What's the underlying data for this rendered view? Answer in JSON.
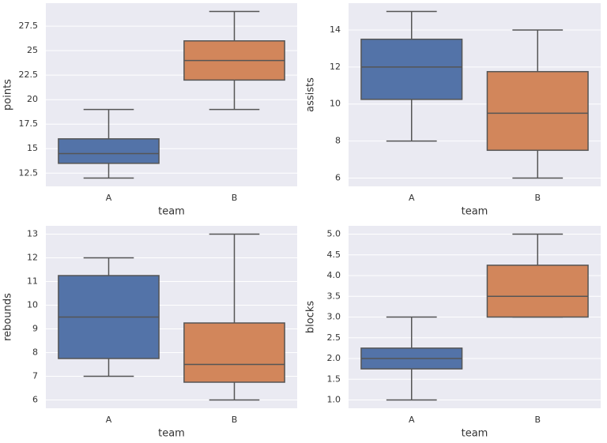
{
  "chart_data": [
    {
      "type": "box",
      "ylabel": "points",
      "xlabel": "team",
      "categories": [
        "A",
        "B"
      ],
      "boxes": [
        {
          "min": 12,
          "q1": 13.5,
          "median": 14.5,
          "q3": 16,
          "max": 19
        },
        {
          "min": 19,
          "q1": 22,
          "median": 24,
          "q3": 26,
          "max": 29
        }
      ],
      "colors": [
        "#4c72b0",
        "#dd8452"
      ],
      "ylim": [
        11.15,
        29.85
      ],
      "yticks": [
        12.5,
        15.0,
        17.5,
        20.0,
        22.5,
        25.0,
        27.5
      ],
      "grid": true
    },
    {
      "type": "box",
      "ylabel": "assists",
      "xlabel": "team",
      "categories": [
        "A",
        "B"
      ],
      "boxes": [
        {
          "min": 8,
          "q1": 10.25,
          "median": 12,
          "q3": 13.5,
          "max": 15
        },
        {
          "min": 6,
          "q1": 7.5,
          "median": 9.5,
          "q3": 11.75,
          "max": 14
        }
      ],
      "colors": [
        "#4c72b0",
        "#dd8452"
      ],
      "ylim": [
        5.55,
        15.45
      ],
      "yticks": [
        6,
        8,
        10,
        12,
        14
      ],
      "grid": true
    },
    {
      "type": "box",
      "ylabel": "rebounds",
      "xlabel": "team",
      "categories": [
        "A",
        "B"
      ],
      "boxes": [
        {
          "min": 7,
          "q1": 7.75,
          "median": 9.5,
          "q3": 11.25,
          "max": 12
        },
        {
          "min": 6,
          "q1": 6.75,
          "median": 7.5,
          "q3": 9.25,
          "max": 13
        }
      ],
      "colors": [
        "#4c72b0",
        "#dd8452"
      ],
      "ylim": [
        5.65,
        13.35
      ],
      "yticks": [
        6,
        7,
        8,
        9,
        10,
        11,
        12,
        13
      ],
      "grid": true
    },
    {
      "type": "box",
      "ylabel": "blocks",
      "xlabel": "team",
      "categories": [
        "A",
        "B"
      ],
      "boxes": [
        {
          "min": 1,
          "q1": 1.75,
          "median": 2,
          "q3": 2.25,
          "max": 3
        },
        {
          "min": 3,
          "q1": 3,
          "median": 3.5,
          "q3": 4.25,
          "max": 5
        }
      ],
      "colors": [
        "#4c72b0",
        "#dd8452"
      ],
      "ylim": [
        0.8,
        5.2
      ],
      "yticks": [
        {
          "value": 1,
          "label": "1.0"
        },
        1.5,
        {
          "value": 2,
          "label": "2.0"
        },
        2.5,
        {
          "value": 3,
          "label": "3.0"
        },
        3.5,
        {
          "value": 4,
          "label": "4.0"
        },
        4.5,
        {
          "value": 5,
          "label": "5.0"
        }
      ],
      "grid": true
    }
  ]
}
